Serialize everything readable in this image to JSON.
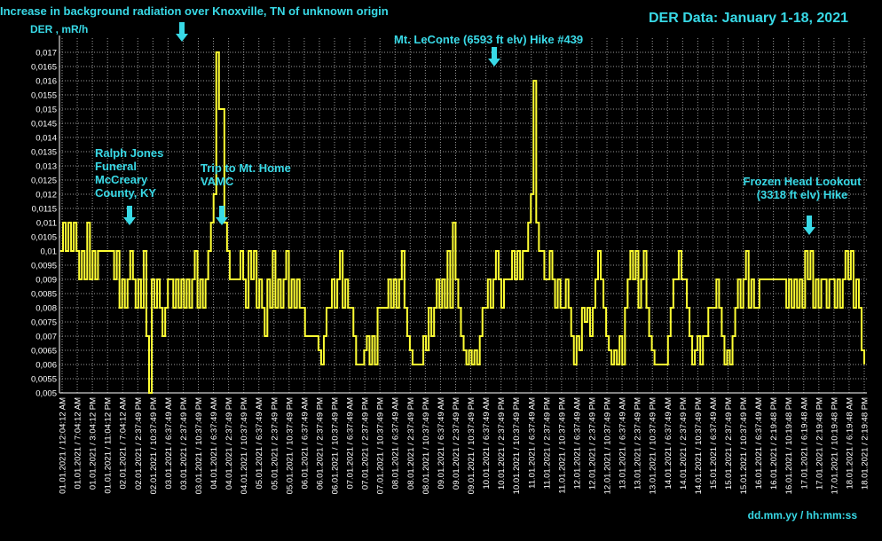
{
  "header": {
    "title_left": "Increase in background radiation over Knoxville, TN of unknown origin",
    "title_right": "DER Data: January 1-18, 2021",
    "ylabel": "DER , mR/h",
    "xlabel": "dd.mm.yy / hh:mm:ss"
  },
  "annotations": [
    {
      "lines": [
        "Ralph Jones",
        "Funeral",
        "McCreary",
        "County, KY"
      ]
    },
    {
      "lines": [
        "Trip to Mt. Home",
        "VAMC"
      ]
    },
    {
      "lines": [
        "Mt. LeConte (6593 ft elv) Hike #439"
      ]
    },
    {
      "lines": [
        "Frozen Head Lookout",
        "(3318 ft elv) Hike"
      ]
    }
  ],
  "colors": {
    "background": "#000000",
    "line": "#ffff33",
    "annotation": "#38d9e6",
    "axis_text": "#ffffff",
    "grid": "#9a9a9a"
  },
  "chart_data": {
    "type": "line",
    "title": "DER Data: January 1-18, 2021",
    "subtitle": "Increase in background radiation over Knoxville, TN of unknown origin",
    "ylabel": "DER , mR/h",
    "xlabel": "dd.mm.yy / hh:mm:ss",
    "ylim": [
      0.005,
      0.0175
    ],
    "yticks": [
      "0,005",
      "0,0055",
      "0,006",
      "0,0065",
      "0,007",
      "0,0075",
      "0,008",
      "0,0085",
      "0,009",
      "0,0095",
      "0,01",
      "0,0105",
      "0,011",
      "0,0115",
      "0,012",
      "0,0125",
      "0,013",
      "0,0135",
      "0,014",
      "0,0145",
      "0,015",
      "0,0155",
      "0,016",
      "0,0165",
      "0,017"
    ],
    "grid": true,
    "xtick_labels": [
      "01.01.2021 / 12:04:12 AM",
      "01.01.2021 / 7:04:12 AM",
      "01.01.2021 / 3:04:12 PM",
      "01.01.2021 / 11:04:12 PM",
      "02.01.2021 / 7:04:12 AM",
      "02.01.2021 / 2:37:49 PM",
      "02.01.2021 / 10:37:49 PM",
      "03.01.2021 / 6:37:49 AM",
      "03.01.2021 / 2:37:49 PM",
      "03.01.2021 / 10:37:49 PM",
      "04.01.2021 / 6:37:49 AM",
      "04.01.2021 / 2:37:49 PM",
      "04.01.2021 / 10:37:49 PM",
      "05.01.2021 / 6:37:49 AM",
      "05.01.2021 / 2:37:49 PM",
      "05.01.2021 / 10:37:49 PM",
      "06.01.2021 / 6:37:49 AM",
      "06.01.2021 / 2:37:49 PM",
      "06.01.2021 / 10:37:49 PM",
      "07.01.2021 / 6:37:49 AM",
      "07.01.2021 / 2:37:49 PM",
      "07.01.2021 / 10:37:49 PM",
      "08.01.2021 / 6:37:49 AM",
      "08.01.2021 / 2:37:49 PM",
      "08.01.2021 / 10:37:49 PM",
      "09.01.2021 / 6:37:49 AM",
      "09.01.2021 / 2:37:49 PM",
      "09.01.2021 / 10:37:49 PM",
      "10.01.2021 / 6:37:49 AM",
      "10.01.2021 / 2:37:49 PM",
      "10.01.2021 / 10:37:49 PM",
      "11.01.2021 / 6:37:49 AM",
      "11.01.2021 / 2:37:49 PM",
      "11.01.2021 / 10:37:49 PM",
      "12.01.2021 / 6:37:49 AM",
      "12.01.2021 / 2:37:49 PM",
      "12.01.2021 / 10:37:49 PM",
      "13.01.2021 / 6:37:49 AM",
      "13.01.2021 / 2:37:49 PM",
      "13.01.2021 / 10:37:49 PM",
      "14.01.2021 / 6:37:49 AM",
      "14.01.2021 / 2:37:49 PM",
      "14.01.2021 / 10:37:49 PM",
      "15.01.2021 / 6:37:49 AM",
      "15.01.2021 / 2:37:49 PM",
      "15.01.2021 / 10:37:49 PM",
      "16.01.2021 / 6:37:49 AM",
      "16.01.2021 / 2:19:48 PM",
      "16.01.2021 / 10:19:48 PM",
      "17.01.2021 / 6:19:48 AM",
      "17.01.2021 / 2:19:48 PM",
      "17.01.2021 / 10:19:48 PM",
      "18.01.2021 / 6:19:48 AM",
      "18.01.2021 / 2:19:48 PM"
    ],
    "series": [
      {
        "values": [
          0.01,
          0.011,
          0.01,
          0.011,
          0.01,
          0.011,
          0.01,
          0.009,
          0.01,
          0.009,
          0.011,
          0.009,
          0.01,
          0.009,
          0.01,
          0.01,
          0.01,
          0.01,
          0.01,
          0.01,
          0.009,
          0.01,
          0.008,
          0.009,
          0.008,
          0.009,
          0.01,
          0.009,
          0.008,
          0.009,
          0.008,
          0.01,
          0.007,
          0.005,
          0.009,
          0.008,
          0.009,
          0.008,
          0.007,
          0.008,
          0.009,
          0.009,
          0.008,
          0.009,
          0.008,
          0.009,
          0.008,
          0.009,
          0.008,
          0.009,
          0.01,
          0.008,
          0.009,
          0.008,
          0.009,
          0.01,
          0.011,
          0.012,
          0.017,
          0.015,
          0.015,
          0.011,
          0.01,
          0.009,
          0.009,
          0.009,
          0.009,
          0.01,
          0.009,
          0.008,
          0.01,
          0.009,
          0.01,
          0.008,
          0.009,
          0.008,
          0.007,
          0.009,
          0.008,
          0.01,
          0.008,
          0.009,
          0.008,
          0.009,
          0.01,
          0.008,
          0.009,
          0.008,
          0.009,
          0.008,
          0.008,
          0.007,
          0.007,
          0.007,
          0.007,
          0.007,
          0.0065,
          0.006,
          0.007,
          0.008,
          0.008,
          0.009,
          0.008,
          0.009,
          0.01,
          0.008,
          0.009,
          0.008,
          0.008,
          0.007,
          0.006,
          0.006,
          0.006,
          0.0065,
          0.007,
          0.006,
          0.007,
          0.006,
          0.008,
          0.008,
          0.008,
          0.008,
          0.009,
          0.008,
          0.009,
          0.008,
          0.009,
          0.01,
          0.008,
          0.007,
          0.0065,
          0.006,
          0.006,
          0.006,
          0.006,
          0.007,
          0.0065,
          0.008,
          0.007,
          0.008,
          0.009,
          0.008,
          0.009,
          0.008,
          0.01,
          0.008,
          0.011,
          0.009,
          0.008,
          0.007,
          0.0065,
          0.006,
          0.0065,
          0.006,
          0.0065,
          0.006,
          0.007,
          0.008,
          0.008,
          0.009,
          0.008,
          0.009,
          0.01,
          0.009,
          0.008,
          0.009,
          0.009,
          0.009,
          0.01,
          0.009,
          0.01,
          0.009,
          0.01,
          0.01,
          0.011,
          0.012,
          0.016,
          0.011,
          0.01,
          0.01,
          0.009,
          0.009,
          0.01,
          0.009,
          0.008,
          0.009,
          0.008,
          0.008,
          0.009,
          0.008,
          0.007,
          0.006,
          0.007,
          0.0065,
          0.008,
          0.0075,
          0.008,
          0.007,
          0.008,
          0.009,
          0.01,
          0.009,
          0.008,
          0.007,
          0.0065,
          0.006,
          0.0065,
          0.006,
          0.007,
          0.006,
          0.008,
          0.009,
          0.01,
          0.009,
          0.01,
          0.008,
          0.009,
          0.01,
          0.008,
          0.007,
          0.0065,
          0.006,
          0.006,
          0.006,
          0.006,
          0.006,
          0.007,
          0.008,
          0.009,
          0.009,
          0.01,
          0.009,
          0.009,
          0.008,
          0.007,
          0.006,
          0.0065,
          0.007,
          0.006,
          0.007,
          0.007,
          0.008,
          0.008,
          0.008,
          0.009,
          0.008,
          0.007,
          0.006,
          0.0065,
          0.006,
          0.007,
          0.008,
          0.009,
          0.008,
          0.009,
          0.01,
          0.008,
          0.009,
          0.008,
          0.008,
          0.009,
          0.009,
          0.009,
          0.009,
          0.009,
          0.009,
          0.009,
          0.009,
          0.009,
          0.009,
          0.008,
          0.009,
          0.008,
          0.009,
          0.008,
          0.009,
          0.008,
          0.01,
          0.009,
          0.01,
          0.008,
          0.009,
          0.008,
          0.009,
          0.009,
          0.008,
          0.009,
          0.009,
          0.008,
          0.009,
          0.008,
          0.009,
          0.01,
          0.009,
          0.01,
          0.008,
          0.009,
          0.008,
          0.0065,
          0.006
        ]
      }
    ]
  }
}
